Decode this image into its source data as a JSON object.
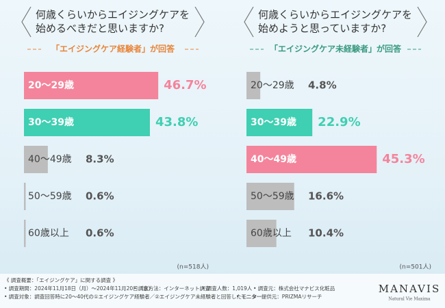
{
  "chart_data": [
    {
      "type": "bar",
      "title": [
        "何歳くらいからエイジングケアを",
        "始めるべきだと思いますか?"
      ],
      "subtitle": "「エイジングケア経験者」が回答",
      "subtitle_color": "#e8853a",
      "categories": [
        "20〜29歳",
        "30〜39歳",
        "40〜49歳",
        "50〜59歳",
        "60歳以上"
      ],
      "values": [
        46.7,
        43.8,
        8.3,
        0.6,
        0.6
      ],
      "value_labels": [
        "46.7%",
        "43.8%",
        "8.3%",
        "0.6%",
        "0.6%"
      ],
      "colors": [
        "#f4849b",
        "#3fcfb2",
        "#bdbdbd",
        "#bdbdbd",
        "#bdbdbd"
      ],
      "note": "(n=518人)"
    },
    {
      "type": "bar",
      "title": [
        "何歳くらいからエイジングケアを",
        "始めようと思っていますか?"
      ],
      "subtitle": "「エイジングケア未経験者」が回答",
      "subtitle_color": "#3a9a80",
      "categories": [
        "20〜29歳",
        "30〜39歳",
        "40〜49歳",
        "50〜59歳",
        "60歳以上"
      ],
      "values": [
        4.8,
        22.9,
        45.3,
        16.6,
        10.4
      ],
      "value_labels": [
        "4.8%",
        "22.9%",
        "45.3%",
        "16.6%",
        "10.4%"
      ],
      "colors": [
        "#bdbdbd",
        "#3fcfb2",
        "#f4849b",
        "#bdbdbd",
        "#bdbdbd"
      ],
      "note": "(n=501人)"
    }
  ],
  "footer": {
    "heading": "《 調査概要：「エイジングケア」に関する調査 》",
    "items": [
      "• 調査期間：2024年11月18日（月）～2024年11月20日（水）",
      "• 調査方法：インターネット調査",
      "• 調査人数：1,019人",
      "• 調査元：株式会社マナビス化粧品",
      "• 調査対象：調査回答時に20〜40代の①エイジングケア経験者／②エイジングケア未経験者と回答したモニター",
      "• モニター提供元：PRIZMAリサーチ"
    ]
  },
  "logo": {
    "brand": "MANAVIS",
    "tagline": "Natural Vie Maxima"
  }
}
